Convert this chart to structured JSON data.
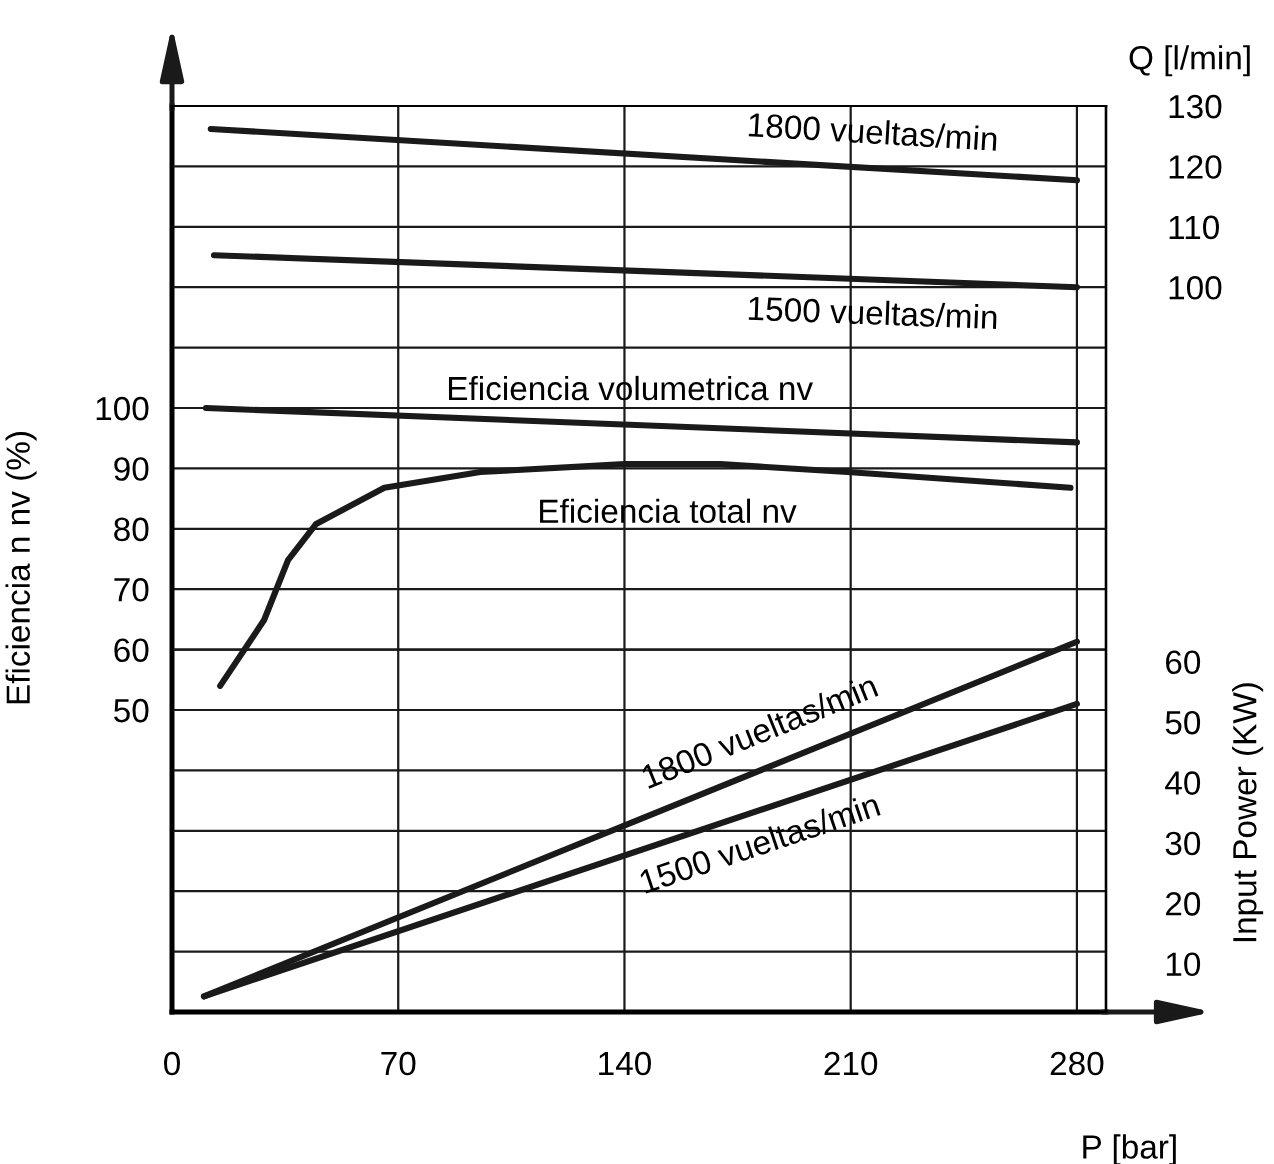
{
  "chart_data": {
    "type": "line",
    "xlabel": "P [bar]",
    "ylabel": "Eficiencia n nv (%)",
    "y2label": "Q [l/min]",
    "y3label": "Input Power (KW)",
    "xlim": [
      0,
      289
    ],
    "xticks": [
      0,
      70,
      140,
      210,
      280
    ],
    "ylim": [
      0,
      150
    ],
    "yticks": [
      50,
      60,
      70,
      80,
      90,
      100
    ],
    "y2lim": [
      -20,
      130
    ],
    "y2ticks": [
      {
        "value": 90,
        "label": null
      },
      100,
      110,
      120,
      130
    ],
    "y3lim": [
      0,
      150
    ],
    "y3ticks": [
      10,
      20,
      30,
      40,
      50,
      60
    ],
    "grid": true,
    "legend": false,
    "marker": "none",
    "line_style": "solid",
    "series": [
      {
        "name": "1800 vueltas/min",
        "axis": "y2",
        "color": "#1a1a1a",
        "x": [
          12,
          280
        ],
        "values": [
          126.2,
          117.7
        ]
      },
      {
        "name": "1500 vueltas/min",
        "axis": "y2",
        "color": "#1a1a1a",
        "x": [
          13,
          280
        ],
        "values": [
          105.3,
          100
        ]
      },
      {
        "name": "Eficiencia volumetrica nv",
        "axis": "y",
        "color": "#1a1a1a",
        "x": [
          10.5,
          280
        ],
        "values": [
          100,
          94.3
        ]
      },
      {
        "name": "Eficiencia total nv",
        "axis": "y",
        "color": "#1a1a1a",
        "x": [
          14.9,
          28.5,
          35.9,
          44.6,
          65.7,
          95.4,
          140,
          169.7,
          209,
          278
        ],
        "values": [
          54,
          64.9,
          74.8,
          80.8,
          86.8,
          89.4,
          90.7,
          90.7,
          89.4,
          86.8
        ]
      },
      {
        "name": "1800 vueltas/min",
        "axis": "y3",
        "color": "#1a1a1a",
        "x": [
          9.9,
          280
        ],
        "values": [
          2.6,
          61.3
        ]
      },
      {
        "name": "1500 vueltas/min",
        "axis": "y3",
        "color": "#1a1a1a",
        "x": [
          9.9,
          280
        ],
        "values": [
          2.6,
          51
        ]
      }
    ]
  }
}
